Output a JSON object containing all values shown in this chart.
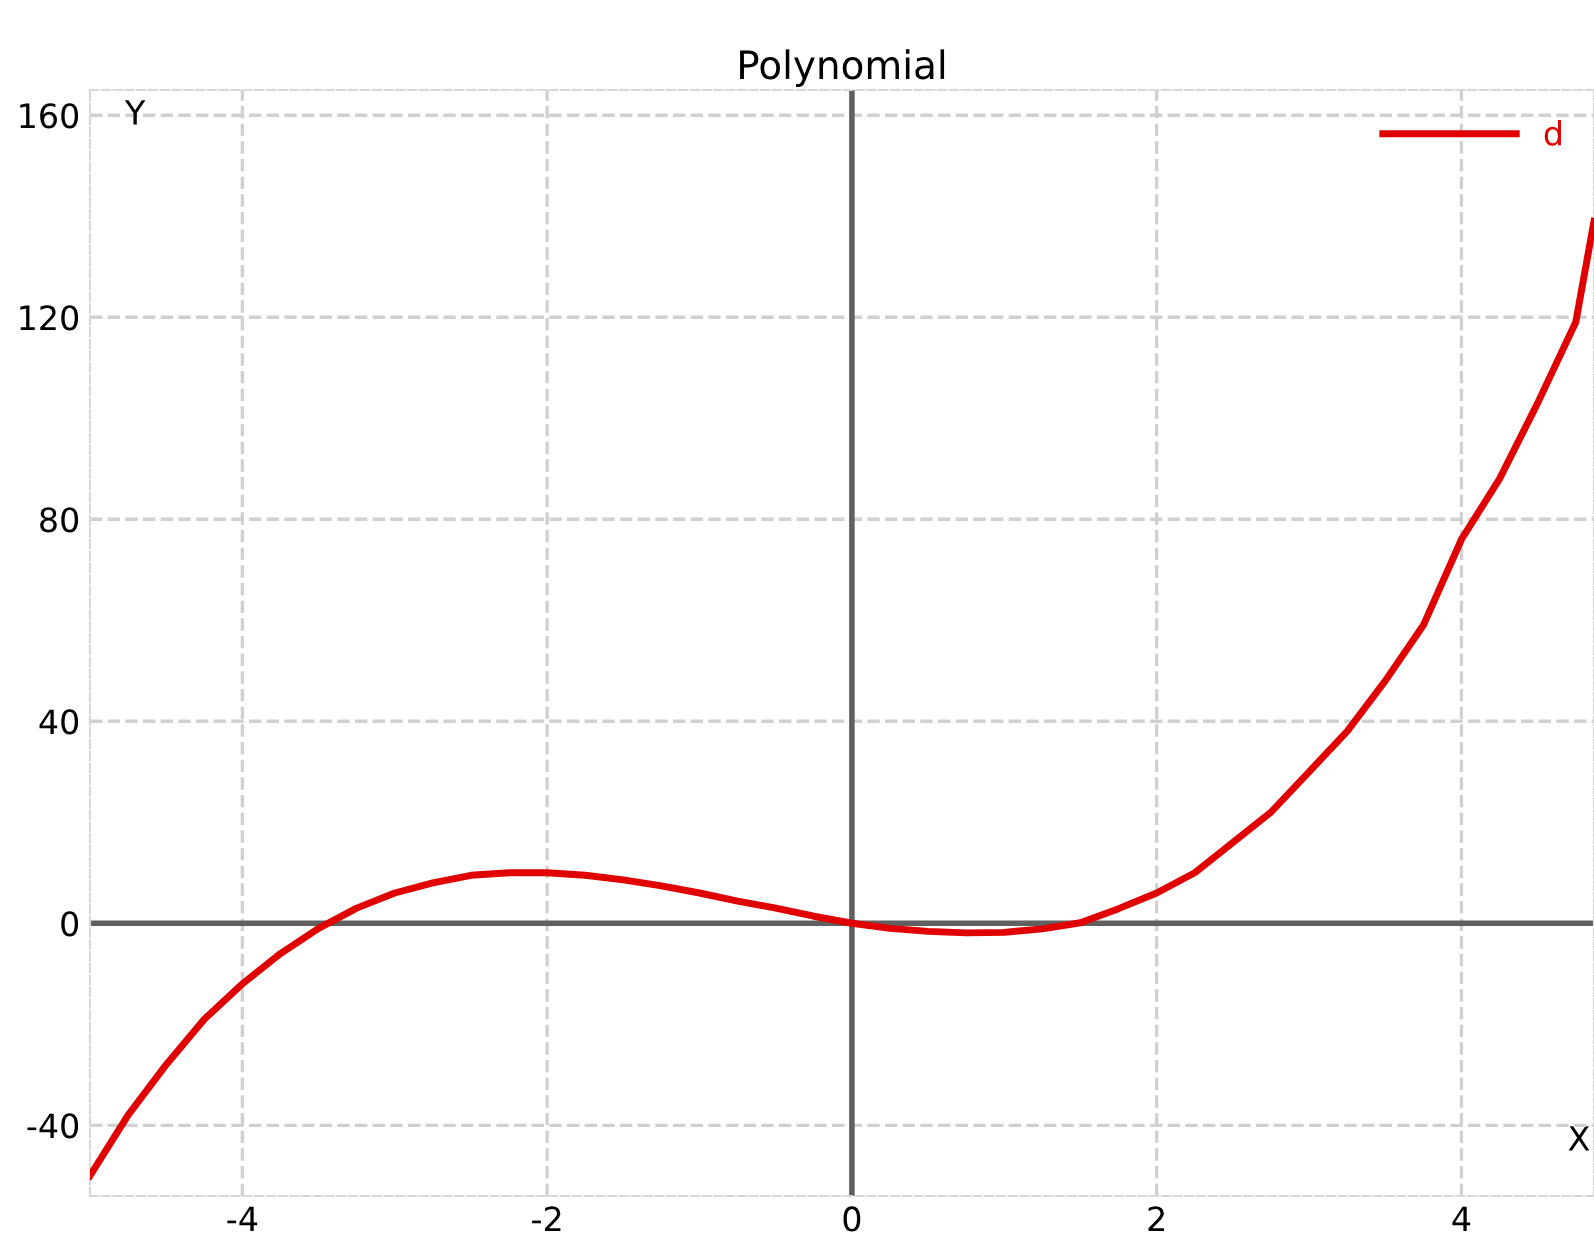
{
  "chart_data": {
    "type": "line",
    "title": "Polynomial",
    "xlabel": "X",
    "ylabel": "Y",
    "x": [
      -5,
      -4.75,
      -4.5,
      -4.25,
      -4,
      -3.75,
      -3.5,
      -3.25,
      -3,
      -2.75,
      -2.5,
      -2.25,
      -2,
      -1.75,
      -1.5,
      -1.25,
      -1,
      -0.75,
      -0.5,
      -0.25,
      0,
      0.25,
      0.5,
      0.75,
      1,
      1.25,
      1.5,
      1.75,
      2,
      2.25,
      2.5,
      2.75,
      3,
      3.25,
      3.5,
      3.75,
      4,
      4.25,
      4.5,
      4.75,
      4.87
    ],
    "series": [
      {
        "name": "d",
        "color": "#e00000",
        "values": [
          -50,
          -38,
          -28,
          -19,
          -12,
          -6,
          -1,
          3,
          6,
          8,
          9.5,
          10,
          10,
          9.5,
          8.6,
          7.4,
          6,
          4.4,
          3,
          1.4,
          0,
          -1,
          -1.6,
          -1.9,
          -1.8,
          -1.1,
          0.1,
          2.9,
          6,
          10,
          16,
          22,
          30,
          38,
          48,
          59,
          76,
          88,
          103,
          119,
          139
        ]
      }
    ],
    "xlim": [
      -5,
      4.87
    ],
    "ylim": [
      -54,
      165
    ],
    "xticks": [
      -4,
      -2,
      0,
      2,
      4
    ],
    "yticks": [
      -40,
      0,
      40,
      80,
      120,
      160
    ],
    "grid": true,
    "legend": "top right",
    "line_style": "solid",
    "marker": "none"
  }
}
